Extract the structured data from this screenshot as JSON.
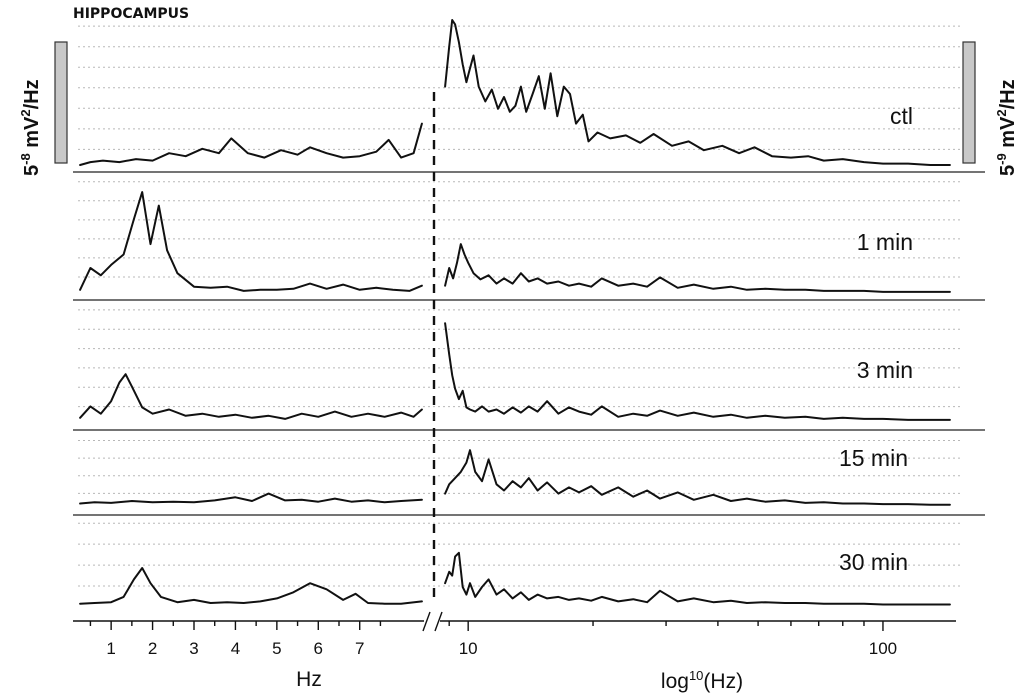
{
  "chart_data": {
    "type": "line",
    "title": "HIPPOCAMPUS",
    "left_scale_label": "5-8 mV2/Hz",
    "right_scale_label": "5-9 mV2/Hz",
    "left_axis": {
      "xlabel": "Hz",
      "scale": "linear",
      "xlim": [
        0.2,
        8.6
      ],
      "ticks": [
        "1",
        "2",
        "3",
        "4",
        "5",
        "6",
        "7"
      ]
    },
    "right_axis": {
      "xlabel": "log10(Hz)",
      "scale": "log",
      "xlim": [
        8.6,
        150
      ],
      "ticks": [
        "10",
        "100"
      ]
    },
    "axis_break": true,
    "grid": "dotted horizontal",
    "series": [
      {
        "name": "ctl",
        "low_freq": {
          "x": [
            0.25,
            0.5,
            0.8,
            1.2,
            1.6,
            2.0,
            2.4,
            2.8,
            3.2,
            3.6,
            3.9,
            4.3,
            4.7,
            5.1,
            5.5,
            5.8,
            6.2,
            6.6,
            7.0,
            7.4,
            7.7,
            8.0,
            8.3,
            8.5
          ],
          "y": [
            0.02,
            0.04,
            0.05,
            0.04,
            0.06,
            0.05,
            0.1,
            0.08,
            0.13,
            0.1,
            0.2,
            0.1,
            0.07,
            0.12,
            0.09,
            0.14,
            0.1,
            0.07,
            0.08,
            0.11,
            0.19,
            0.07,
            0.1,
            0.3
          ]
        },
        "high_freq": {
          "x": [
            8.8,
            9.0,
            9.15,
            9.3,
            9.5,
            9.7,
            9.9,
            10.05,
            10.3,
            10.6,
            11.0,
            11.4,
            11.8,
            12.2,
            12.6,
            13.0,
            13.4,
            13.8,
            14.3,
            14.8,
            15.3,
            15.8,
            16.4,
            17.0,
            17.6,
            18.2,
            18.9,
            19.5,
            20.5,
            22,
            24,
            26,
            28,
            31,
            34,
            37,
            41,
            45,
            49,
            54,
            60,
            66,
            72,
            80,
            90,
            100,
            115,
            130,
            145
          ],
          "y": [
            0.55,
            0.82,
            1.0,
            0.97,
            0.85,
            0.7,
            0.58,
            0.65,
            0.76,
            0.55,
            0.45,
            0.53,
            0.4,
            0.48,
            0.38,
            0.42,
            0.55,
            0.38,
            0.5,
            0.62,
            0.4,
            0.64,
            0.35,
            0.55,
            0.5,
            0.3,
            0.36,
            0.18,
            0.24,
            0.2,
            0.22,
            0.17,
            0.23,
            0.15,
            0.18,
            0.12,
            0.15,
            0.1,
            0.14,
            0.08,
            0.07,
            0.08,
            0.05,
            0.06,
            0.04,
            0.03,
            0.03,
            0.02,
            0.02
          ]
        }
      },
      {
        "name": "1 min",
        "low_freq": {
          "x": [
            0.25,
            0.5,
            0.75,
            1.0,
            1.3,
            1.55,
            1.75,
            1.95,
            2.15,
            2.35,
            2.6,
            3.0,
            3.4,
            3.8,
            4.2,
            4.6,
            5.0,
            5.4,
            5.8,
            6.2,
            6.6,
            7.0,
            7.4,
            7.8,
            8.2,
            8.5
          ],
          "y": [
            0.04,
            0.25,
            0.18,
            0.28,
            0.38,
            0.72,
            0.98,
            0.48,
            0.85,
            0.42,
            0.2,
            0.07,
            0.06,
            0.07,
            0.03,
            0.04,
            0.04,
            0.05,
            0.1,
            0.05,
            0.09,
            0.04,
            0.06,
            0.04,
            0.03,
            0.08
          ]
        },
        "high_freq": {
          "x": [
            8.8,
            9.0,
            9.2,
            9.4,
            9.6,
            9.8,
            10.0,
            10.3,
            10.7,
            11.2,
            11.7,
            12.2,
            12.8,
            13.4,
            14.0,
            14.7,
            15.5,
            16.5,
            17.5,
            18.5,
            19.8,
            21,
            23,
            25,
            27,
            29,
            32,
            35,
            39,
            43,
            47,
            52,
            58,
            65,
            72,
            80,
            90,
            100,
            115,
            130,
            145
          ],
          "y": [
            0.08,
            0.25,
            0.15,
            0.3,
            0.48,
            0.38,
            0.3,
            0.2,
            0.14,
            0.18,
            0.1,
            0.15,
            0.1,
            0.2,
            0.12,
            0.15,
            0.1,
            0.12,
            0.08,
            0.1,
            0.07,
            0.15,
            0.08,
            0.1,
            0.07,
            0.16,
            0.06,
            0.09,
            0.05,
            0.07,
            0.04,
            0.05,
            0.04,
            0.04,
            0.03,
            0.03,
            0.03,
            0.02,
            0.02,
            0.02,
            0.02
          ]
        }
      },
      {
        "name": "3 min",
        "low_freq": {
          "x": [
            0.25,
            0.5,
            0.75,
            1.0,
            1.2,
            1.35,
            1.5,
            1.75,
            2.0,
            2.4,
            2.8,
            3.2,
            3.6,
            4.0,
            4.4,
            4.8,
            5.2,
            5.6,
            6.0,
            6.4,
            6.8,
            7.2,
            7.6,
            8.0,
            8.3,
            8.5
          ],
          "y": [
            0.04,
            0.15,
            0.08,
            0.2,
            0.38,
            0.46,
            0.34,
            0.14,
            0.08,
            0.12,
            0.06,
            0.08,
            0.05,
            0.07,
            0.04,
            0.06,
            0.03,
            0.08,
            0.05,
            0.1,
            0.05,
            0.08,
            0.05,
            0.09,
            0.05,
            0.12
          ]
        },
        "high_freq": {
          "x": [
            8.8,
            9.0,
            9.15,
            9.3,
            9.5,
            9.7,
            9.9,
            10.1,
            10.4,
            10.8,
            11.2,
            11.7,
            12.2,
            12.8,
            13.4,
            14.0,
            14.7,
            15.5,
            16.5,
            17.5,
            18.5,
            19.8,
            21,
            23,
            25,
            27,
            29,
            32,
            35,
            39,
            43,
            47,
            52,
            58,
            65,
            72,
            80,
            90,
            100,
            115,
            130,
            145
          ],
          "y": [
            0.95,
            0.65,
            0.45,
            0.32,
            0.22,
            0.3,
            0.14,
            0.12,
            0.1,
            0.15,
            0.1,
            0.12,
            0.08,
            0.14,
            0.09,
            0.15,
            0.1,
            0.2,
            0.08,
            0.14,
            0.1,
            0.07,
            0.15,
            0.05,
            0.08,
            0.06,
            0.11,
            0.06,
            0.09,
            0.05,
            0.07,
            0.04,
            0.06,
            0.04,
            0.05,
            0.03,
            0.04,
            0.03,
            0.03,
            0.02,
            0.02,
            0.02
          ]
        }
      },
      {
        "name": "15 min",
        "low_freq": {
          "x": [
            0.25,
            0.6,
            1.0,
            1.5,
            2.0,
            2.5,
            3.0,
            3.5,
            4.0,
            4.4,
            4.8,
            5.2,
            5.6,
            6.0,
            6.4,
            6.8,
            7.2,
            7.6,
            8.0,
            8.5
          ],
          "y": [
            0.04,
            0.06,
            0.05,
            0.08,
            0.06,
            0.07,
            0.06,
            0.09,
            0.14,
            0.08,
            0.2,
            0.09,
            0.1,
            0.07,
            0.12,
            0.07,
            0.09,
            0.06,
            0.08,
            0.1
          ]
        },
        "high_freq": {
          "x": [
            8.8,
            9.0,
            9.3,
            9.6,
            9.9,
            10.1,
            10.4,
            10.8,
            11.2,
            11.7,
            12.2,
            12.8,
            13.4,
            14.0,
            14.7,
            15.5,
            16.5,
            17.5,
            18.5,
            19.8,
            21,
            23,
            25,
            27,
            29,
            32,
            35,
            39,
            43,
            47,
            52,
            58,
            65,
            72,
            80,
            90,
            100,
            115,
            130,
            145
          ],
          "y": [
            0.2,
            0.35,
            0.45,
            0.55,
            0.7,
            0.9,
            0.55,
            0.4,
            0.75,
            0.35,
            0.25,
            0.4,
            0.3,
            0.45,
            0.25,
            0.38,
            0.2,
            0.3,
            0.22,
            0.32,
            0.18,
            0.3,
            0.15,
            0.25,
            0.12,
            0.22,
            0.1,
            0.18,
            0.08,
            0.12,
            0.07,
            0.09,
            0.05,
            0.06,
            0.04,
            0.04,
            0.03,
            0.03,
            0.02,
            0.02
          ]
        }
      },
      {
        "name": "30 min",
        "low_freq": {
          "x": [
            0.25,
            0.6,
            1.0,
            1.3,
            1.55,
            1.75,
            1.95,
            2.2,
            2.6,
            3.0,
            3.4,
            3.8,
            4.2,
            4.6,
            5.0,
            5.4,
            5.8,
            6.2,
            6.6,
            6.9,
            7.2,
            7.6,
            8.0,
            8.5
          ],
          "y": [
            0.03,
            0.04,
            0.05,
            0.12,
            0.35,
            0.5,
            0.3,
            0.12,
            0.05,
            0.08,
            0.04,
            0.05,
            0.04,
            0.06,
            0.1,
            0.18,
            0.3,
            0.22,
            0.08,
            0.16,
            0.04,
            0.03,
            0.03,
            0.06
          ]
        },
        "high_freq": {
          "x": [
            8.8,
            9.0,
            9.15,
            9.3,
            9.5,
            9.7,
            9.9,
            10.1,
            10.4,
            10.8,
            11.2,
            11.7,
            12.2,
            12.8,
            13.4,
            14.0,
            14.7,
            15.5,
            16.5,
            17.5,
            18.5,
            19.8,
            21,
            23,
            25,
            27,
            29,
            32,
            35,
            39,
            43,
            47,
            52,
            58,
            65,
            72,
            80,
            90,
            100,
            115,
            130,
            145
          ],
          "y": [
            0.3,
            0.45,
            0.4,
            0.65,
            0.7,
            0.25,
            0.15,
            0.3,
            0.12,
            0.25,
            0.35,
            0.15,
            0.22,
            0.1,
            0.18,
            0.08,
            0.15,
            0.1,
            0.12,
            0.08,
            0.1,
            0.07,
            0.12,
            0.06,
            0.09,
            0.05,
            0.2,
            0.06,
            0.1,
            0.05,
            0.07,
            0.04,
            0.05,
            0.04,
            0.04,
            0.03,
            0.03,
            0.03,
            0.02,
            0.02,
            0.02,
            0.02
          ]
        }
      }
    ]
  }
}
